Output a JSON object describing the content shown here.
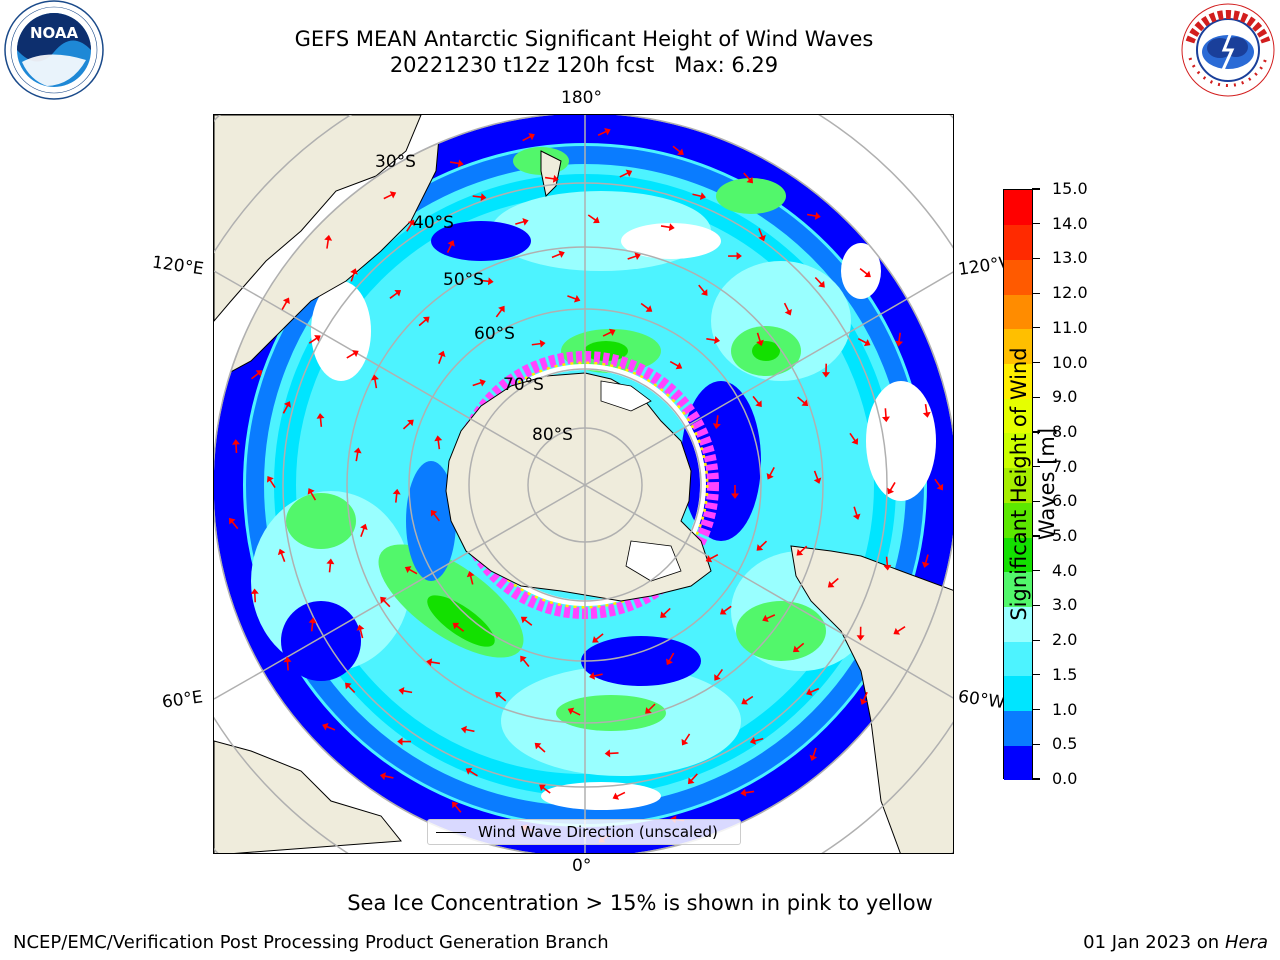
{
  "header": {
    "title_line1": "GEFS MEAN Antarctic Significant Height of Wind Waves",
    "title_line2": "20221230 t12z 120h fcst   Max: 6.29"
  },
  "logos": {
    "left": {
      "icon": "noaa-logo",
      "text": "NOAA"
    },
    "right": {
      "icon": "national-weather-service-logo",
      "text": "NATIONAL WEATHER SERVICE"
    }
  },
  "map": {
    "projection": "south-polar-stereographic",
    "longitude_labels": {
      "top": "180°",
      "bottom": "0°",
      "left_upper": "120°E",
      "left_lower": "60°E",
      "right_upper": "120°W",
      "right_lower": "60°W"
    },
    "latitude_labels": [
      "30°S",
      "40°S",
      "50°S",
      "60°S",
      "70°S",
      "80°S"
    ],
    "legend": {
      "label": "Wind Wave Direction (unscaled)"
    },
    "colors": {
      "land": "#efecdc",
      "vector": "#ff0000",
      "graticule": "#b0b0b0",
      "sea_ice": "#ff44ff"
    }
  },
  "colorbar": {
    "label": "Significant Height of Wind Waves [m]",
    "ticks": [
      "0.0",
      "0.5",
      "1.0",
      "1.5",
      "2.0",
      "3.0",
      "4.0",
      "5.0",
      "6.0",
      "7.0",
      "8.0",
      "9.0",
      "10.0",
      "11.0",
      "12.0",
      "13.0",
      "14.0",
      "15.0"
    ],
    "colors": [
      "#0000ff",
      "#0a7cff",
      "#00e5ff",
      "#4df3ff",
      "#99ffff",
      "#52f76b",
      "#13e000",
      "#5ce800",
      "#a7ee00",
      "#ccff00",
      "#e5ff00",
      "#ffee00",
      "#ffbf00",
      "#ff8c00",
      "#ff5a00",
      "#ff2a00",
      "#ff0000"
    ]
  },
  "footer": {
    "note": "Sea Ice Concentration > 15% is shown in pink to yellow",
    "left": "NCEP/EMC/Verification Post Processing Product Generation Branch",
    "right_prefix": "01 Jan 2023 on ",
    "right_machine": "Hera"
  }
}
